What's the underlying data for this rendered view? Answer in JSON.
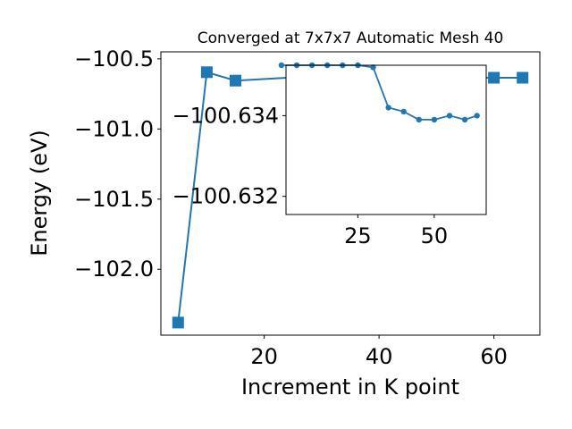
{
  "chart_data": [
    {
      "type": "line",
      "title": "Converged at 7x7x7 Automatic Mesh 40",
      "xlabel": "Increment in K point",
      "ylabel": "Energy (eV)",
      "xlim": [
        2.0,
        68.0
      ],
      "ylim": [
        -102.47,
        -100.45
      ],
      "xticks": [
        20,
        40,
        60
      ],
      "yticks": [
        -102.0,
        -101.5,
        -101.0,
        -100.5
      ],
      "ytick_labels": [
        "−102.0",
        "−101.5",
        "−101.0",
        "−100.5"
      ],
      "marker": "square",
      "color": "#1f77b4",
      "grid": false,
      "series": [
        {
          "x": [
            5,
            10,
            15,
            25,
            30,
            35,
            40,
            45,
            50,
            55,
            60,
            65
          ],
          "y": [
            -102.38,
            -100.595,
            -100.655,
            -100.632,
            -100.632,
            -100.632,
            -100.632,
            -100.632,
            -100.632,
            -100.632,
            -100.6345,
            -100.6345
          ]
        }
      ]
    },
    {
      "type": "line",
      "title": "",
      "xlabel": "",
      "ylabel": "",
      "inset": true,
      "xlim": [
        1.5,
        67.0
      ],
      "ylim": [
        -100.63155,
        -100.63525
      ],
      "xticks": [
        25,
        50
      ],
      "yticks": [
        -100.634,
        -100.632
      ],
      "ytick_labels": [
        "−100.634",
        "−100.632"
      ],
      "marker": "circle",
      "color": "#1f77b4",
      "grid": false,
      "series": [
        {
          "x": [
            0,
            5,
            10,
            15,
            20,
            25,
            30,
            35,
            40,
            45,
            50,
            55,
            60,
            64
          ],
          "y": [
            -100.63525,
            -100.63525,
            -100.63525,
            -100.63525,
            -100.63525,
            -100.63525,
            -100.6352,
            -100.6342,
            -100.6341,
            -100.6339,
            -100.6339,
            -100.634,
            -100.6339,
            -100.634
          ]
        }
      ]
    }
  ]
}
